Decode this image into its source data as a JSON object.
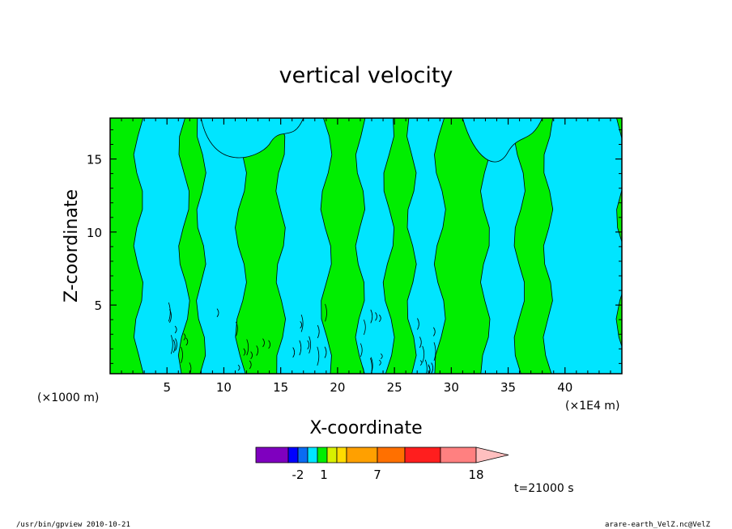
{
  "chart_data": {
    "type": "heatmap",
    "title": "vertical velocity",
    "xlabel": "X-coordinate",
    "ylabel": "Z-coordinate",
    "x_unit_left": "(×1000 m)",
    "x_unit_right": "(×1E4 m)",
    "xlim": [
      0,
      45
    ],
    "ylim": [
      0.3,
      17.8
    ],
    "xticks": [
      5,
      10,
      15,
      20,
      25,
      30,
      35,
      40
    ],
    "yticks": [
      5,
      10,
      15
    ],
    "grid": false,
    "colorbar": {
      "colors": [
        "#7f00bf",
        "#0000ff",
        "#0a6cf2",
        "#00e5ff",
        "#00ee00",
        "#d8f000",
        "#ffdc00",
        "#ffa000",
        "#ff7000",
        "#ff1e1e",
        "#ff8080",
        "#ffbfbf"
      ],
      "tick_labels": [
        "-2",
        "1",
        "7",
        "18"
      ],
      "extend": "max"
    },
    "field": {
      "negative_color": "#00e5ff",
      "positive_color": "#00ee00",
      "bands": [
        {
          "x0": 0.0,
          "x1": 1.0,
          "sign": "positive"
        },
        {
          "x0": 1.0,
          "x1": 2.5,
          "sign": "positive"
        },
        {
          "x0": 2.5,
          "x1": 6.5,
          "sign": "negative"
        },
        {
          "x0": 6.5,
          "x1": 8.0,
          "sign": "positive"
        },
        {
          "x0": 8.0,
          "x1": 11.5,
          "sign": "negative"
        },
        {
          "x0": 11.5,
          "x1": 15.0,
          "sign": "positive"
        },
        {
          "x0": 15.0,
          "x1": 19.0,
          "sign": "negative"
        },
        {
          "x0": 19.0,
          "x1": 22.0,
          "sign": "positive"
        },
        {
          "x0": 22.0,
          "x1": 24.5,
          "sign": "negative"
        },
        {
          "x0": 24.5,
          "x1": 26.5,
          "sign": "positive"
        },
        {
          "x0": 26.5,
          "x1": 29.0,
          "sign": "negative"
        },
        {
          "x0": 29.0,
          "x1": 33.0,
          "sign": "positive"
        },
        {
          "x0": 33.0,
          "x1": 36.0,
          "sign": "negative"
        },
        {
          "x0": 36.0,
          "x1": 38.5,
          "sign": "positive"
        },
        {
          "x0": 38.5,
          "x1": 45.0,
          "sign": "negative"
        }
      ]
    }
  },
  "annotation": {
    "time": "t=21000 s"
  },
  "footer": {
    "left": "/usr/bin/gpview   2010-10-21",
    "right": "arare-earth_VelZ.nc@VelZ"
  }
}
